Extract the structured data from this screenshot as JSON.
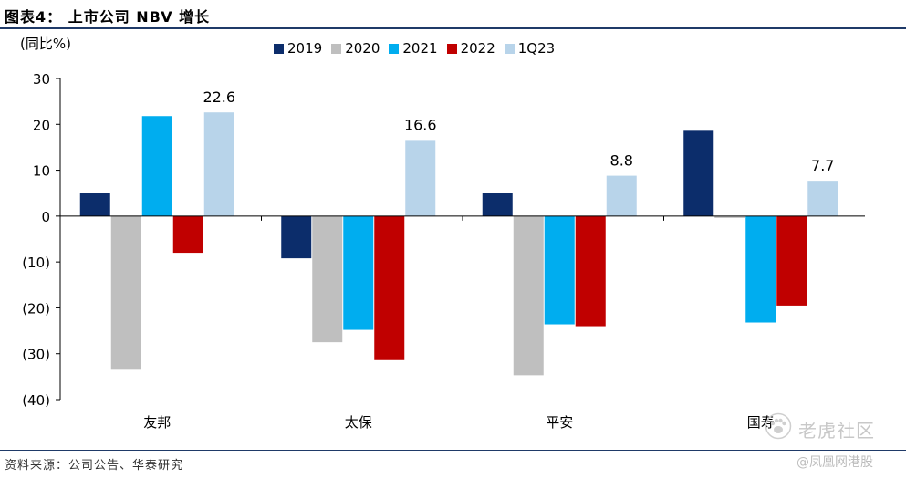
{
  "header": {
    "title": "图表4：  上市公司 NBV 增长"
  },
  "footer": {
    "source": "资料来源：公司公告、华泰研究"
  },
  "watermark": {
    "main": "老虎社区",
    "sub": "@凤凰网港股"
  },
  "chart_data": {
    "type": "bar",
    "ylabel": "(同比%)",
    "ylim": [
      -40,
      30
    ],
    "yticks": [
      30,
      20,
      10,
      0,
      -10,
      -20,
      -30,
      -40
    ],
    "ytick_labels": [
      "30",
      "20",
      "10",
      "0",
      "(10)",
      "(20)",
      "(30)",
      "(40)"
    ],
    "categories": [
      "友邦",
      "太保",
      "平安",
      "国寿"
    ],
    "legend_position": "top",
    "grid": false,
    "series": [
      {
        "name": "2019",
        "color": "#0c2d6b",
        "values": [
          5.0,
          -9.2,
          5.0,
          18.6
        ]
      },
      {
        "name": "2020",
        "color": "#bfbfbf",
        "values": [
          -33.3,
          -27.5,
          -34.7,
          -0.4
        ]
      },
      {
        "name": "2021",
        "color": "#00adef",
        "values": [
          21.8,
          -24.8,
          -23.6,
          -23.2
        ]
      },
      {
        "name": "2022",
        "color": "#c00000",
        "values": [
          -8.0,
          -31.4,
          -24.0,
          -19.5
        ]
      },
      {
        "name": "1Q23",
        "color": "#b8d4ea",
        "values": [
          22.6,
          16.6,
          8.8,
          7.7
        ]
      }
    ],
    "data_labels": [
      {
        "series": "1Q23",
        "category": "友邦",
        "text": "22.6"
      },
      {
        "series": "1Q23",
        "category": "太保",
        "text": "16.6"
      },
      {
        "series": "1Q23",
        "category": "平安",
        "text": "8.8"
      },
      {
        "series": "1Q23",
        "category": "国寿",
        "text": "7.7"
      }
    ]
  }
}
